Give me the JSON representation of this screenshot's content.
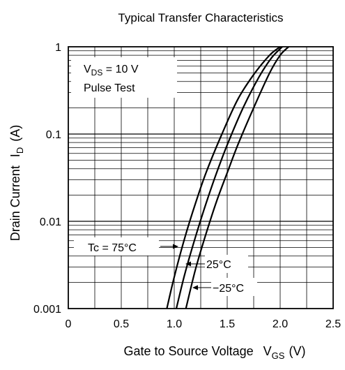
{
  "chart_data": {
    "type": "line",
    "title": "Typical Transfer Characteristics",
    "xlabel": {
      "main": "Gate to Source Voltage",
      "symbol": "V",
      "sub": "GS",
      "unit": "(V)"
    },
    "ylabel": {
      "main": "Drain Current",
      "symbol": "I",
      "sub": "D",
      "unit": "(A)"
    },
    "xlim": [
      0,
      2.5
    ],
    "ylim": [
      0.001,
      1
    ],
    "yscale": "log",
    "grid": true,
    "x_ticks": [
      "0",
      "0.5",
      "1.0",
      "1.5",
      "2.0",
      "2.5"
    ],
    "x_tick_values": [
      0,
      0.5,
      1.0,
      1.5,
      2.0,
      2.5
    ],
    "y_ticks": [
      "0.001",
      "0.01",
      "0.1",
      "1"
    ],
    "y_tick_values": [
      0.001,
      0.01,
      0.1,
      1
    ],
    "conditions": {
      "line1": {
        "symbol": "V",
        "sub": "DS",
        "rest": " = 10 V"
      },
      "line2": "Pulse Test"
    },
    "series": [
      {
        "name": "Tc = 75°C",
        "x": [
          0.93,
          1.0,
          1.1,
          1.2,
          1.3,
          1.45,
          1.6,
          1.75,
          1.9,
          2.0
        ],
        "y": [
          0.001,
          0.0023,
          0.0065,
          0.016,
          0.036,
          0.1,
          0.25,
          0.48,
          0.8,
          1.0
        ]
      },
      {
        "name": "25°C",
        "x": [
          1.02,
          1.1,
          1.2,
          1.3,
          1.4,
          1.5,
          1.65,
          1.8,
          1.92,
          2.02
        ],
        "y": [
          0.001,
          0.0025,
          0.0066,
          0.016,
          0.036,
          0.075,
          0.2,
          0.45,
          0.75,
          1.0
        ]
      },
      {
        "name": "−25°C",
        "x": [
          1.11,
          1.2,
          1.3,
          1.4,
          1.5,
          1.6,
          1.75,
          1.9,
          2.0,
          2.08
        ],
        "y": [
          0.001,
          0.0028,
          0.0072,
          0.017,
          0.036,
          0.075,
          0.2,
          0.5,
          0.8,
          1.0
        ]
      }
    ],
    "labels": {
      "tc75": "Tc = 75°C",
      "t25": "25°C",
      "tm25": "−25°C"
    }
  }
}
